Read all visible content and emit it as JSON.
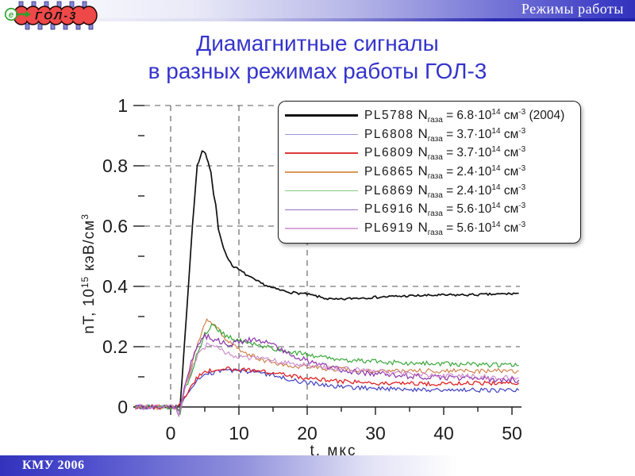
{
  "slide": {
    "header": {
      "label": "Режимы работы"
    },
    "footer": {
      "label": "КМУ 2006"
    },
    "logo": {
      "text": "ГОЛ-3",
      "electron": "e"
    },
    "title": {
      "line1": "Диамагнитные сигналы",
      "line2": "в разных режимах работы ГОЛ-3"
    },
    "accent_color": "#3434cc",
    "bar_color": "#3232bc"
  },
  "legend": {
    "items": [
      {
        "shot": "PL5788",
        "n": "N",
        "n_sub": "газа",
        "eq": " = 6.8·10",
        "exp": "14",
        "unit": " см",
        "unit_exp": "-3",
        "note": " (2004)",
        "color": "#101010"
      },
      {
        "shot": "PL6808",
        "n": "N",
        "n_sub": "газа",
        "eq": " = 3.7·10",
        "exp": "14",
        "unit": " см",
        "unit_exp": "-3",
        "note": "",
        "color": "#9a9ad8"
      },
      {
        "shot": "PL6809",
        "n": "N",
        "n_sub": "газа",
        "eq": " = 3.7·10",
        "exp": "14",
        "unit": " см",
        "unit_exp": "-3",
        "note": "",
        "color": "#e03838"
      },
      {
        "shot": "PL6865",
        "n": "N",
        "n_sub": "газа",
        "eq": " = 2.4·10",
        "exp": "14",
        "unit": " см",
        "unit_exp": "-3",
        "note": "",
        "color": "#d89a5a"
      },
      {
        "shot": "PL6869",
        "n": "N",
        "n_sub": "газа",
        "eq": " = 2.4·10",
        "exp": "14",
        "unit": " см",
        "unit_exp": "-3",
        "note": "",
        "color": "#86cc86"
      },
      {
        "shot": "PL6916",
        "n": "N",
        "n_sub": "газа",
        "eq": " = 5.6·10",
        "exp": "14",
        "unit": " см",
        "unit_exp": "-3",
        "note": "",
        "color": "#9a6ec0"
      },
      {
        "shot": "PL6919",
        "n": "N",
        "n_sub": "газа",
        "eq": " = 5.6·10",
        "exp": "14",
        "unit": " см",
        "unit_exp": "-3",
        "note": "",
        "color": "#d8a8d8"
      }
    ]
  },
  "chart_data": {
    "type": "line",
    "title": "Диамагнитные сигналы в разных режимах работы ГОЛ-3",
    "xlabel": "t, мкс",
    "ylabel": {
      "pre": "nT, 10",
      "exp": "15",
      "unit": " кэВ/см",
      "unit_exp": "3"
    },
    "xlim": [
      -5.2,
      51
    ],
    "ylim": [
      0,
      1
    ],
    "xticks": [
      0,
      10,
      20,
      30,
      40,
      50
    ],
    "xminor": [
      5,
      15,
      25,
      35,
      45
    ],
    "yticks": [
      0,
      0.2,
      0.4,
      0.6,
      0.8,
      1
    ],
    "yminor": [
      0.1,
      0.3,
      0.5,
      0.7,
      0.9
    ],
    "xgrid": [
      0,
      10,
      20
    ],
    "grid": "dashed",
    "legend_position": "upper right",
    "series": [
      {
        "name": "PL5788",
        "n_gas": "6.8e14",
        "color": "#101010",
        "width": 1.7,
        "noise": 0.004,
        "points": [
          [
            -5.2,
            0
          ],
          [
            0,
            0
          ],
          [
            1.4,
            0.005
          ],
          [
            2,
            0.2
          ],
          [
            2.6,
            0.4
          ],
          [
            3.2,
            0.6
          ],
          [
            3.9,
            0.8
          ],
          [
            4.6,
            0.85
          ],
          [
            5.1,
            0.845
          ],
          [
            5.5,
            0.81
          ],
          [
            5.9,
            0.78
          ],
          [
            6.3,
            0.7
          ],
          [
            6.6,
            0.67
          ],
          [
            7,
            0.59
          ],
          [
            7.5,
            0.55
          ],
          [
            8,
            0.51
          ],
          [
            9,
            0.47
          ],
          [
            10,
            0.455
          ],
          [
            11,
            0.44
          ],
          [
            12,
            0.425
          ],
          [
            13,
            0.413
          ],
          [
            14,
            0.403
          ],
          [
            15,
            0.394
          ],
          [
            16,
            0.388
          ],
          [
            17,
            0.383
          ],
          [
            18,
            0.379
          ],
          [
            19,
            0.377
          ],
          [
            20,
            0.374
          ],
          [
            21,
            0.369
          ],
          [
            22,
            0.364
          ],
          [
            23,
            0.359
          ],
          [
            24,
            0.356
          ],
          [
            25,
            0.357
          ],
          [
            27,
            0.361
          ],
          [
            30,
            0.364
          ],
          [
            33,
            0.367
          ],
          [
            36,
            0.369
          ],
          [
            40,
            0.371
          ],
          [
            44,
            0.372
          ],
          [
            48,
            0.374
          ],
          [
            51,
            0.377
          ]
        ]
      },
      {
        "name": "PL6808",
        "n_gas": "3.7e14",
        "color": "#4040c0",
        "width": 1.2,
        "noise": 0.007,
        "points": [
          [
            -5.2,
            0
          ],
          [
            0.8,
            0
          ],
          [
            1.3,
            -0.01
          ],
          [
            2,
            0.025
          ],
          [
            3,
            0.06
          ],
          [
            4,
            0.09
          ],
          [
            5,
            0.105
          ],
          [
            6,
            0.112
          ],
          [
            7,
            0.118
          ],
          [
            8,
            0.122
          ],
          [
            9,
            0.12
          ],
          [
            10,
            0.12
          ],
          [
            11,
            0.117
          ],
          [
            12,
            0.118
          ],
          [
            13,
            0.113
          ],
          [
            14,
            0.108
          ],
          [
            15,
            0.104
          ],
          [
            16,
            0.099
          ],
          [
            17,
            0.094
          ],
          [
            18,
            0.089
          ],
          [
            19,
            0.085
          ],
          [
            20,
            0.081
          ],
          [
            22,
            0.075
          ],
          [
            24,
            0.07
          ],
          [
            26,
            0.066
          ],
          [
            28,
            0.063
          ],
          [
            30,
            0.062
          ],
          [
            33,
            0.06
          ],
          [
            36,
            0.058
          ],
          [
            40,
            0.057
          ],
          [
            44,
            0.056
          ],
          [
            48,
            0.055
          ],
          [
            51,
            0.055
          ]
        ]
      },
      {
        "name": "PL6809",
        "n_gas": "3.7e14",
        "color": "#e02222",
        "width": 1.3,
        "noise": 0.007,
        "points": [
          [
            -5.2,
            0
          ],
          [
            0.8,
            0
          ],
          [
            1.4,
            0.01
          ],
          [
            2,
            0.03
          ],
          [
            3,
            0.07
          ],
          [
            4,
            0.1
          ],
          [
            5,
            0.115
          ],
          [
            6,
            0.122
          ],
          [
            7,
            0.125
          ],
          [
            8,
            0.127
          ],
          [
            9,
            0.125
          ],
          [
            10,
            0.126
          ],
          [
            11,
            0.123
          ],
          [
            12,
            0.124
          ],
          [
            13,
            0.12
          ],
          [
            14,
            0.117
          ],
          [
            15,
            0.113
          ],
          [
            16,
            0.11
          ],
          [
            17,
            0.106
          ],
          [
            18,
            0.102
          ],
          [
            19,
            0.098
          ],
          [
            20,
            0.095
          ],
          [
            22,
            0.09
          ],
          [
            24,
            0.087
          ],
          [
            26,
            0.084
          ],
          [
            28,
            0.082
          ],
          [
            30,
            0.08
          ],
          [
            33,
            0.079
          ],
          [
            36,
            0.078
          ],
          [
            40,
            0.077
          ],
          [
            44,
            0.079
          ],
          [
            48,
            0.078
          ],
          [
            51,
            0.08
          ]
        ]
      },
      {
        "name": "PL6865",
        "n_gas": "2.4e14",
        "color": "#cc7a3e",
        "width": 1.1,
        "noise": 0.008,
        "points": [
          [
            -5.2,
            0
          ],
          [
            0.8,
            0
          ],
          [
            1.3,
            -0.015
          ],
          [
            2,
            0.06
          ],
          [
            3,
            0.13
          ],
          [
            4,
            0.21
          ],
          [
            4.8,
            0.27
          ],
          [
            5.3,
            0.29
          ],
          [
            5.8,
            0.285
          ],
          [
            6.5,
            0.27
          ],
          [
            7,
            0.255
          ],
          [
            8,
            0.225
          ],
          [
            9,
            0.205
          ],
          [
            10,
            0.19
          ],
          [
            11,
            0.178
          ],
          [
            12,
            0.168
          ],
          [
            13,
            0.16
          ],
          [
            14,
            0.153
          ],
          [
            15,
            0.148
          ],
          [
            16,
            0.143
          ],
          [
            17,
            0.14
          ],
          [
            18,
            0.137
          ],
          [
            19,
            0.134
          ],
          [
            20,
            0.132
          ],
          [
            22,
            0.128
          ],
          [
            24,
            0.126
          ],
          [
            26,
            0.124
          ],
          [
            28,
            0.122
          ],
          [
            30,
            0.121
          ],
          [
            33,
            0.12
          ],
          [
            36,
            0.119
          ],
          [
            40,
            0.12
          ],
          [
            44,
            0.119
          ],
          [
            48,
            0.12
          ],
          [
            51,
            0.12
          ]
        ]
      },
      {
        "name": "PL6869",
        "n_gas": "2.4e14",
        "color": "#3aa83a",
        "width": 1.2,
        "noise": 0.008,
        "points": [
          [
            -5.2,
            0
          ],
          [
            0.8,
            0
          ],
          [
            1.4,
            -0.02
          ],
          [
            2,
            0.05
          ],
          [
            3,
            0.11
          ],
          [
            4,
            0.185
          ],
          [
            5,
            0.24
          ],
          [
            6,
            0.268
          ],
          [
            6.5,
            0.262
          ],
          [
            7,
            0.252
          ],
          [
            8,
            0.238
          ],
          [
            9,
            0.227
          ],
          [
            10,
            0.22
          ],
          [
            11,
            0.214
          ],
          [
            12,
            0.209
          ],
          [
            13,
            0.203
          ],
          [
            14,
            0.199
          ],
          [
            15,
            0.194
          ],
          [
            16,
            0.19
          ],
          [
            17,
            0.186
          ],
          [
            18,
            0.181
          ],
          [
            19,
            0.177
          ],
          [
            20,
            0.172
          ],
          [
            22,
            0.165
          ],
          [
            24,
            0.16
          ],
          [
            26,
            0.156
          ],
          [
            28,
            0.152
          ],
          [
            30,
            0.15
          ],
          [
            33,
            0.147
          ],
          [
            36,
            0.145
          ],
          [
            40,
            0.143
          ],
          [
            44,
            0.141
          ],
          [
            48,
            0.139
          ],
          [
            51,
            0.138
          ]
        ]
      },
      {
        "name": "PL6916",
        "n_gas": "5.6e14",
        "color": "#8a33aa",
        "width": 1.2,
        "noise": 0.009,
        "points": [
          [
            -5.2,
            0
          ],
          [
            0.7,
            0
          ],
          [
            1.2,
            -0.025
          ],
          [
            2,
            0.07
          ],
          [
            3,
            0.15
          ],
          [
            4,
            0.205
          ],
          [
            4.8,
            0.235
          ],
          [
            5.5,
            0.232
          ],
          [
            6.5,
            0.222
          ],
          [
            7.5,
            0.215
          ],
          [
            8.5,
            0.21
          ],
          [
            9.5,
            0.212
          ],
          [
            10.5,
            0.217
          ],
          [
            11.5,
            0.222
          ],
          [
            12.3,
            0.225
          ],
          [
            13,
            0.222
          ],
          [
            14,
            0.213
          ],
          [
            15,
            0.202
          ],
          [
            16,
            0.192
          ],
          [
            17,
            0.182
          ],
          [
            18,
            0.172
          ],
          [
            19,
            0.163
          ],
          [
            20,
            0.155
          ],
          [
            21,
            0.147
          ],
          [
            22,
            0.14
          ],
          [
            23,
            0.134
          ],
          [
            24,
            0.128
          ],
          [
            25,
            0.124
          ],
          [
            26,
            0.12
          ],
          [
            28,
            0.114
          ],
          [
            30,
            0.11
          ],
          [
            33,
            0.105
          ],
          [
            36,
            0.101
          ],
          [
            40,
            0.097
          ],
          [
            44,
            0.094
          ],
          [
            48,
            0.091
          ],
          [
            51,
            0.09
          ]
        ]
      },
      {
        "name": "PL6919",
        "n_gas": "5.6e14",
        "color": "#cc88cc",
        "width": 1.1,
        "noise": 0.009,
        "points": [
          [
            -5.2,
            0
          ],
          [
            0.7,
            0
          ],
          [
            1.2,
            -0.03
          ],
          [
            2,
            0.055
          ],
          [
            3,
            0.125
          ],
          [
            4,
            0.175
          ],
          [
            5,
            0.2
          ],
          [
            5.6,
            0.208
          ],
          [
            6.5,
            0.198
          ],
          [
            7.5,
            0.188
          ],
          [
            8.5,
            0.178
          ],
          [
            9.5,
            0.17
          ],
          [
            10.5,
            0.165
          ],
          [
            11.5,
            0.162
          ],
          [
            12.5,
            0.163
          ],
          [
            13.5,
            0.159
          ],
          [
            14.5,
            0.155
          ],
          [
            16,
            0.151
          ],
          [
            17,
            0.148
          ],
          [
            18,
            0.145
          ],
          [
            19,
            0.142
          ],
          [
            20,
            0.14
          ],
          [
            22,
            0.135
          ],
          [
            24,
            0.13
          ],
          [
            26,
            0.126
          ],
          [
            28,
            0.122
          ],
          [
            30,
            0.117
          ],
          [
            33,
            0.112
          ],
          [
            36,
            0.108
          ],
          [
            40,
            0.104
          ],
          [
            44,
            0.1
          ],
          [
            48,
            0.097
          ],
          [
            51,
            0.096
          ]
        ]
      }
    ]
  }
}
